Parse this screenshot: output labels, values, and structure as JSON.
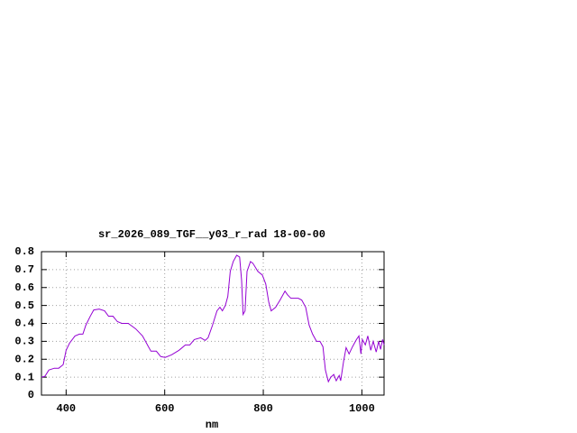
{
  "chart_data": {
    "type": "line",
    "title": "sr_2026_089_TGF__y03_r_rad 18-00-00",
    "x_label": "nm",
    "x": [
      350,
      357,
      365,
      376,
      385,
      394,
      400,
      407,
      418,
      427,
      434,
      440,
      449,
      456,
      467,
      478,
      486,
      495,
      504,
      513,
      526,
      541,
      555,
      565,
      572,
      583,
      592,
      601,
      614,
      629,
      642,
      651,
      660,
      673,
      682,
      688,
      697,
      706,
      712,
      717,
      723,
      728,
      733,
      739,
      746,
      752,
      756,
      759,
      763,
      767,
      774,
      779,
      789,
      798,
      805,
      811,
      816,
      825,
      834,
      844,
      849,
      856,
      864,
      871,
      878,
      886,
      893,
      900,
      908,
      915,
      921,
      926,
      932,
      937,
      943,
      948,
      954,
      957,
      963,
      968,
      974,
      981,
      989,
      994,
      998,
      1001,
      1007,
      1012,
      1018,
      1023,
      1029,
      1034,
      1038,
      1042,
      1045
    ],
    "series": [
      {
        "color": "#9400d3",
        "values": [
          0.1,
          0.105,
          0.14,
          0.15,
          0.15,
          0.17,
          0.25,
          0.29,
          0.33,
          0.34,
          0.34,
          0.39,
          0.44,
          0.475,
          0.48,
          0.47,
          0.44,
          0.44,
          0.41,
          0.4,
          0.4,
          0.37,
          0.33,
          0.28,
          0.245,
          0.245,
          0.215,
          0.21,
          0.225,
          0.25,
          0.28,
          0.28,
          0.31,
          0.32,
          0.305,
          0.32,
          0.39,
          0.47,
          0.49,
          0.47,
          0.5,
          0.55,
          0.69,
          0.745,
          0.78,
          0.77,
          0.64,
          0.45,
          0.47,
          0.69,
          0.745,
          0.735,
          0.69,
          0.67,
          0.62,
          0.52,
          0.47,
          0.49,
          0.53,
          0.58,
          0.56,
          0.54,
          0.54,
          0.54,
          0.53,
          0.49,
          0.39,
          0.34,
          0.3,
          0.3,
          0.27,
          0.14,
          0.075,
          0.1,
          0.115,
          0.08,
          0.11,
          0.08,
          0.19,
          0.265,
          0.23,
          0.27,
          0.31,
          0.33,
          0.23,
          0.31,
          0.28,
          0.33,
          0.25,
          0.3,
          0.24,
          0.3,
          0.255,
          0.31,
          0.28
        ]
      }
    ],
    "xlim": [
      350,
      1045
    ],
    "ylim": [
      0,
      0.8
    ],
    "xticks": [
      400,
      600,
      800,
      1000
    ],
    "yticks": [
      0,
      0.1,
      0.2,
      0.3,
      0.4,
      0.5,
      0.6,
      0.7,
      0.8
    ],
    "grid": true
  }
}
